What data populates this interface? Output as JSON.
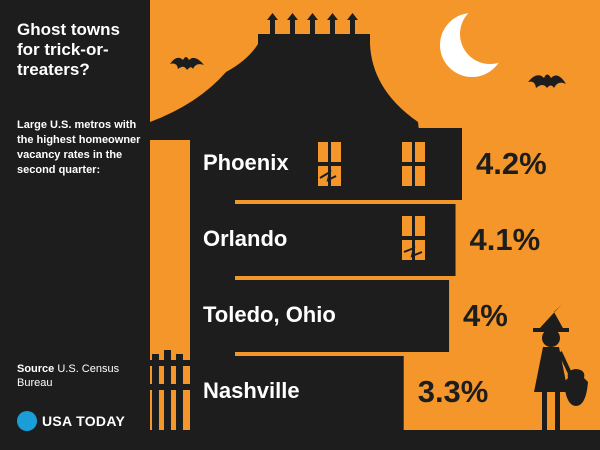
{
  "title": "Ghost towns for trick-or-treaters?",
  "subtitle": "Large U.S. metros with the highest homeowner vacancy rates in the second quarter:",
  "source": {
    "label": "Source",
    "text": "U.S. Census Bureau"
  },
  "brand": {
    "name": "USA TODAY"
  },
  "colors": {
    "background": "#f4962a",
    "dark": "#1d1d1d",
    "brand_dot": "#199ed9",
    "text_light": "#ffffff"
  },
  "chart_data": {
    "type": "bar",
    "categories": [
      "Phoenix",
      "Orlando",
      "Toledo, Ohio",
      "Nashville"
    ],
    "values": [
      4.2,
      4.1,
      4.0,
      3.3
    ],
    "value_labels": [
      "4.2%",
      "4.1%",
      "4%",
      "3.3%"
    ],
    "unit": "%"
  }
}
